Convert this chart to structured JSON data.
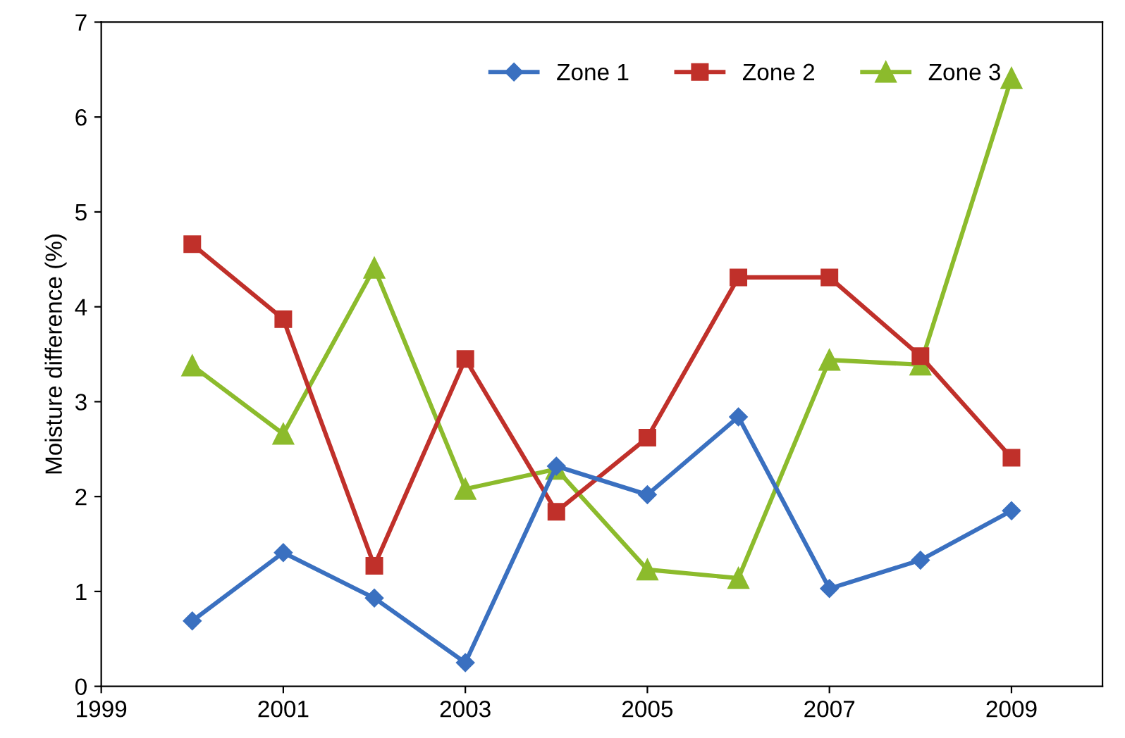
{
  "chart_data": {
    "type": "line",
    "ylabel": "Moisture difference (%)",
    "x": [
      2000,
      2001,
      2002,
      2003,
      2004,
      2005,
      2006,
      2007,
      2008,
      2009
    ],
    "series": [
      {
        "name": "Zone 1",
        "color": "#3a70c0",
        "marker": "diamond",
        "values": [
          0.69,
          1.41,
          0.93,
          0.25,
          2.32,
          2.02,
          2.84,
          1.03,
          1.33,
          1.85
        ]
      },
      {
        "name": "Zone 2",
        "color": "#c0302a",
        "marker": "square",
        "values": [
          4.66,
          3.87,
          1.27,
          3.45,
          1.84,
          2.62,
          4.31,
          4.31,
          3.48,
          2.41
        ]
      },
      {
        "name": "Zone 3",
        "color": "#8cbb2c",
        "marker": "triangle",
        "values": [
          3.38,
          2.66,
          4.41,
          2.08,
          2.29,
          1.23,
          1.14,
          3.44,
          3.39,
          6.41
        ]
      }
    ],
    "xlim": [
      1999,
      2010
    ],
    "xticks": [
      1999,
      2001,
      2003,
      2005,
      2007,
      2009
    ],
    "ylim": [
      0,
      7
    ],
    "yticks": [
      0,
      1,
      2,
      3,
      4,
      5,
      6,
      7
    ],
    "grid": false,
    "legend": "top right",
    "line_style": "solid"
  }
}
